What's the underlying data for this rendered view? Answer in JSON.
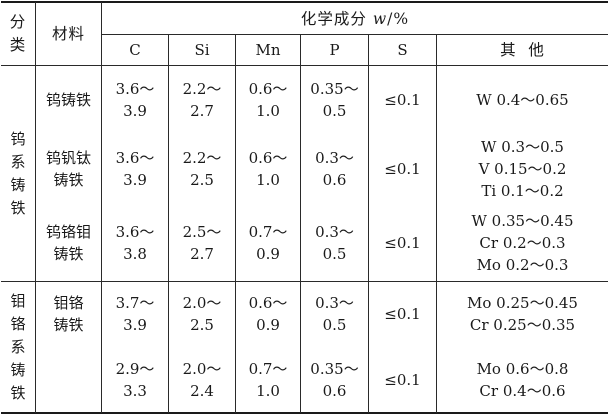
{
  "header": {
    "category": [
      "分",
      "类"
    ],
    "material": "材料",
    "group_title_prefix": "化学成分 ",
    "group_title_var": "w",
    "group_title_suffix": "/%",
    "cols": [
      "C",
      "Si",
      "Mn",
      "P",
      "S",
      "其  他"
    ]
  },
  "categories": [
    {
      "chars": [
        "钨",
        "系",
        "铸",
        "铁"
      ]
    },
    {
      "chars": [
        "钼",
        "铬",
        "系",
        "铸",
        "铁"
      ]
    }
  ],
  "rows": [
    {
      "material": [
        "钨铸铁"
      ],
      "C": [
        "3.6～",
        "3.9"
      ],
      "Si": [
        "2.2～",
        "2.7"
      ],
      "Mn": [
        "0.6～",
        "1.0"
      ],
      "P": [
        "0.35～",
        "0.5"
      ],
      "S": "≤0.1",
      "other": [
        "W 0.4～0.65"
      ]
    },
    {
      "material": [
        "钨钒钛",
        "铸铁"
      ],
      "C": [
        "3.6～",
        "3.9"
      ],
      "Si": [
        "2.2～",
        "2.5"
      ],
      "Mn": [
        "0.6～",
        "1.0"
      ],
      "P": [
        "0.3～",
        "0.6"
      ],
      "S": "≤0.1",
      "other": [
        "W 0.3～0.5",
        "V 0.15～0.2",
        "Ti 0.1～0.2"
      ]
    },
    {
      "material": [
        "钨铬钼",
        "铸铁"
      ],
      "C": [
        "3.6～",
        "3.8"
      ],
      "Si": [
        "2.5～",
        "2.7"
      ],
      "Mn": [
        "0.7～",
        "0.9"
      ],
      "P": [
        "0.3～",
        "0.5"
      ],
      "S": "≤0.1",
      "other": [
        "W 0.35～0.45",
        "Cr 0.2～0.3",
        "Mo 0.2～0.3"
      ]
    },
    {
      "material": [
        "钼铬",
        "铸铁"
      ],
      "C": [
        "3.7～",
        "3.9"
      ],
      "Si": [
        "2.0～",
        "2.5"
      ],
      "Mn": [
        "0.6～",
        "0.9"
      ],
      "P": [
        "0.3～",
        "0.5"
      ],
      "S": "≤0.1",
      "other": [
        "Mo 0.25～0.45",
        "Cr 0.25～0.35"
      ]
    },
    {
      "material": [],
      "C": [
        "2.9～",
        "3.3"
      ],
      "Si": [
        "2.0～",
        "2.4"
      ],
      "Mn": [
        "0.7～",
        "1.0"
      ],
      "P": [
        "0.35～",
        "0.6"
      ],
      "S": "≤0.1",
      "other": [
        "Mo 0.6～0.8",
        "Cr 0.4～0.6"
      ]
    }
  ]
}
